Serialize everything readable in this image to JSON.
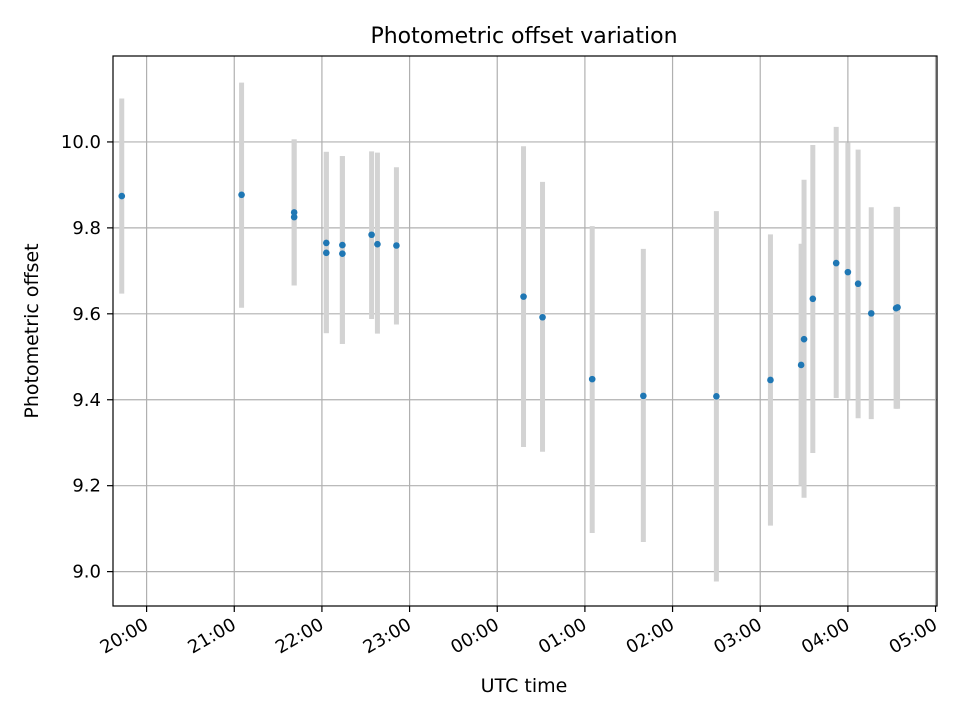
{
  "chart_data": {
    "type": "scatter",
    "title": "Photometric offset variation",
    "xlabel": "UTC time",
    "ylabel": "Photometric offset",
    "x_axis_kind": "time",
    "x_start_date": "",
    "xlim": [
      "19:37",
      "05:01"
    ],
    "ylim": [
      8.92,
      10.2
    ],
    "xticks": [
      "20:00",
      "21:00",
      "22:00",
      "23:00",
      "00:00",
      "01:00",
      "02:00",
      "03:00",
      "04:00",
      "05:00"
    ],
    "yticks": [
      "9.0",
      "9.2",
      "9.4",
      "9.6",
      "9.8",
      "10.0"
    ],
    "grid": true,
    "colors": {
      "marker": "#1f77b4",
      "errorbar": "#d3d3d3",
      "grid": "#b0b0b0"
    },
    "series": [
      {
        "points": [
          {
            "x": "19:43",
            "y": 9.874,
            "ylow": 9.647,
            "yhigh": 10.101
          },
          {
            "x": "21:05",
            "y": 9.877,
            "ylow": 9.614,
            "yhigh": 10.138
          },
          {
            "x": "21:41",
            "y": 9.836,
            "ylow": 9.666,
            "yhigh": 10.006
          },
          {
            "x": "21:41",
            "y": 9.825,
            "ylow": 9.666,
            "yhigh": 10.006
          },
          {
            "x": "22:03",
            "y": 9.765,
            "ylow": 9.555,
            "yhigh": 9.977
          },
          {
            "x": "22:03",
            "y": 9.742,
            "ylow": 9.555,
            "yhigh": 9.977
          },
          {
            "x": "22:14",
            "y": 9.76,
            "ylow": 9.53,
            "yhigh": 9.967
          },
          {
            "x": "22:14",
            "y": 9.74,
            "ylow": 9.53,
            "yhigh": 9.967
          },
          {
            "x": "22:34",
            "y": 9.784,
            "ylow": 9.588,
            "yhigh": 9.978
          },
          {
            "x": "22:38",
            "y": 9.762,
            "ylow": 9.554,
            "yhigh": 9.975
          },
          {
            "x": "22:51",
            "y": 9.759,
            "ylow": 9.575,
            "yhigh": 9.941
          },
          {
            "x": "00:18",
            "y": 9.64,
            "ylow": 9.29,
            "yhigh": 9.99
          },
          {
            "x": "00:31",
            "y": 9.592,
            "ylow": 9.279,
            "yhigh": 9.907
          },
          {
            "x": "01:05",
            "y": 9.448,
            "ylow": 9.09,
            "yhigh": 9.804
          },
          {
            "x": "01:40",
            "y": 9.409,
            "ylow": 9.069,
            "yhigh": 9.751
          },
          {
            "x": "02:30",
            "y": 9.408,
            "ylow": 8.977,
            "yhigh": 9.839
          },
          {
            "x": "03:07",
            "y": 9.446,
            "ylow": 9.107,
            "yhigh": 9.785
          },
          {
            "x": "03:28",
            "y": 9.481,
            "ylow": 9.2,
            "yhigh": 9.763
          },
          {
            "x": "03:30",
            "y": 9.541,
            "ylow": 9.172,
            "yhigh": 9.912
          },
          {
            "x": "03:36",
            "y": 9.635,
            "ylow": 9.276,
            "yhigh": 9.993
          },
          {
            "x": "03:52",
            "y": 9.718,
            "ylow": 9.404,
            "yhigh": 10.035
          },
          {
            "x": "04:00",
            "y": 9.697,
            "ylow": 9.4,
            "yhigh": 9.998
          },
          {
            "x": "04:07",
            "y": 9.67,
            "ylow": 9.357,
            "yhigh": 9.982
          },
          {
            "x": "04:16",
            "y": 9.601,
            "ylow": 9.355,
            "yhigh": 9.848
          },
          {
            "x": "04:33",
            "y": 9.613,
            "ylow": 9.379,
            "yhigh": 9.849
          },
          {
            "x": "04:34",
            "y": 9.615,
            "ylow": 9.379,
            "yhigh": 9.849
          }
        ]
      }
    ]
  }
}
